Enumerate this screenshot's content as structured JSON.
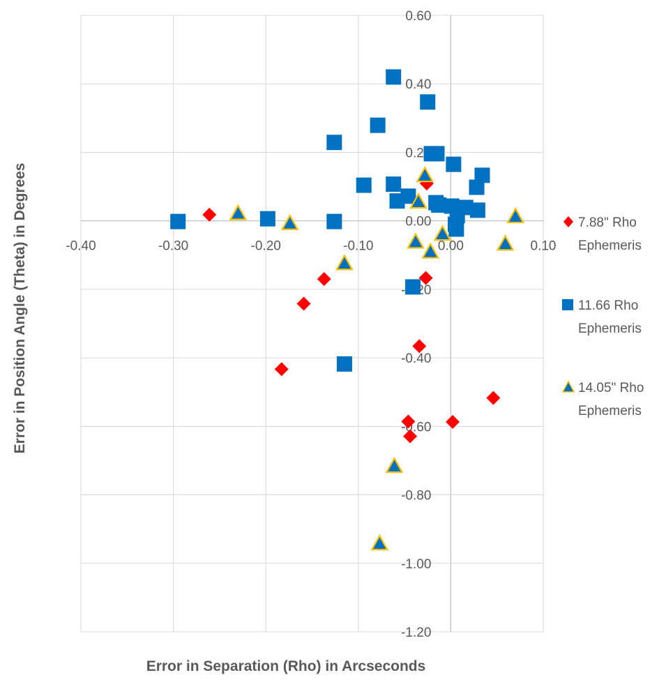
{
  "chart_data": {
    "type": "scatter",
    "title": "",
    "xlabel": "Error in Separation (Rho) in Arcseconds",
    "ylabel": "Error in Position Angle (Theta) in Degrees",
    "xlim": [
      -0.4,
      0.1
    ],
    "ylim": [
      -1.2,
      0.6
    ],
    "x_ticks": [
      "-0.40",
      "-0.30",
      "-0.20",
      "-0.10",
      "0.00",
      "0.10"
    ],
    "y_ticks": [
      "0.60",
      "0.40",
      "0.20",
      "0.00",
      "-0.20",
      "-0.40",
      "-0.60",
      "-0.80",
      "-1.00",
      "-1.20"
    ],
    "grid": true,
    "legend_position": "right",
    "series": [
      {
        "name": "7.88\" Rho Ephemeris",
        "legend_lines": [
          "7.88\" Rho",
          "Ephemeris"
        ],
        "marker": "diamond",
        "color": "#ff0000",
        "points": [
          [
            -0.261,
            0.018
          ],
          [
            -0.026,
            0.109
          ],
          [
            -0.137,
            -0.17
          ],
          [
            -0.159,
            -0.242
          ],
          [
            -0.183,
            -0.433
          ],
          [
            -0.027,
            -0.167
          ],
          [
            -0.034,
            -0.366
          ],
          [
            -0.046,
            -0.586
          ],
          [
            -0.044,
            -0.629
          ],
          [
            0.002,
            -0.587
          ],
          [
            0.046,
            -0.517
          ]
        ]
      },
      {
        "name": "11.66 Rho Ephemeris",
        "legend_lines": [
          "11.66 Rho",
          "Ephemeris"
        ],
        "marker": "square",
        "color": "#0070c0",
        "points": [
          [
            -0.295,
            -0.002
          ],
          [
            -0.198,
            0.006
          ],
          [
            -0.126,
            -0.002
          ],
          [
            -0.126,
            0.229
          ],
          [
            -0.062,
            0.42
          ],
          [
            -0.025,
            0.347
          ],
          [
            -0.079,
            0.279
          ],
          [
            -0.094,
            0.104
          ],
          [
            -0.062,
            0.107
          ],
          [
            -0.058,
            0.058
          ],
          [
            -0.046,
            0.072
          ],
          [
            -0.015,
            0.196
          ],
          [
            -0.021,
            0.196
          ],
          [
            0.003,
            0.165
          ],
          [
            0.034,
            0.133
          ],
          [
            0.028,
            0.098
          ],
          [
            -0.013,
            0.046
          ],
          [
            -0.016,
            0.053
          ],
          [
            0.001,
            0.043
          ],
          [
            0.016,
            0.039
          ],
          [
            0.029,
            0.031
          ],
          [
            0.007,
            0.015
          ],
          [
            0.005,
            -0.01
          ],
          [
            0.006,
            -0.024
          ],
          [
            -0.041,
            -0.193
          ],
          [
            -0.115,
            -0.418
          ]
        ]
      },
      {
        "name": "14.05\" Rho Ephemeris",
        "legend_lines": [
          "14.05\" Rho",
          "Ephemeris"
        ],
        "marker": "triangle",
        "color": "#0070c0",
        "outline": "#ffc000",
        "points": [
          [
            -0.23,
            0.022
          ],
          [
            -0.174,
            -0.007
          ],
          [
            -0.115,
            -0.124
          ],
          [
            -0.028,
            0.133
          ],
          [
            -0.035,
            0.056
          ],
          [
            -0.038,
            -0.061
          ],
          [
            -0.022,
            -0.09
          ],
          [
            -0.009,
            -0.038
          ],
          [
            0.059,
            -0.067
          ],
          [
            0.07,
            0.013
          ],
          [
            -0.061,
            -0.716
          ],
          [
            -0.077,
            -0.942
          ]
        ]
      }
    ]
  }
}
